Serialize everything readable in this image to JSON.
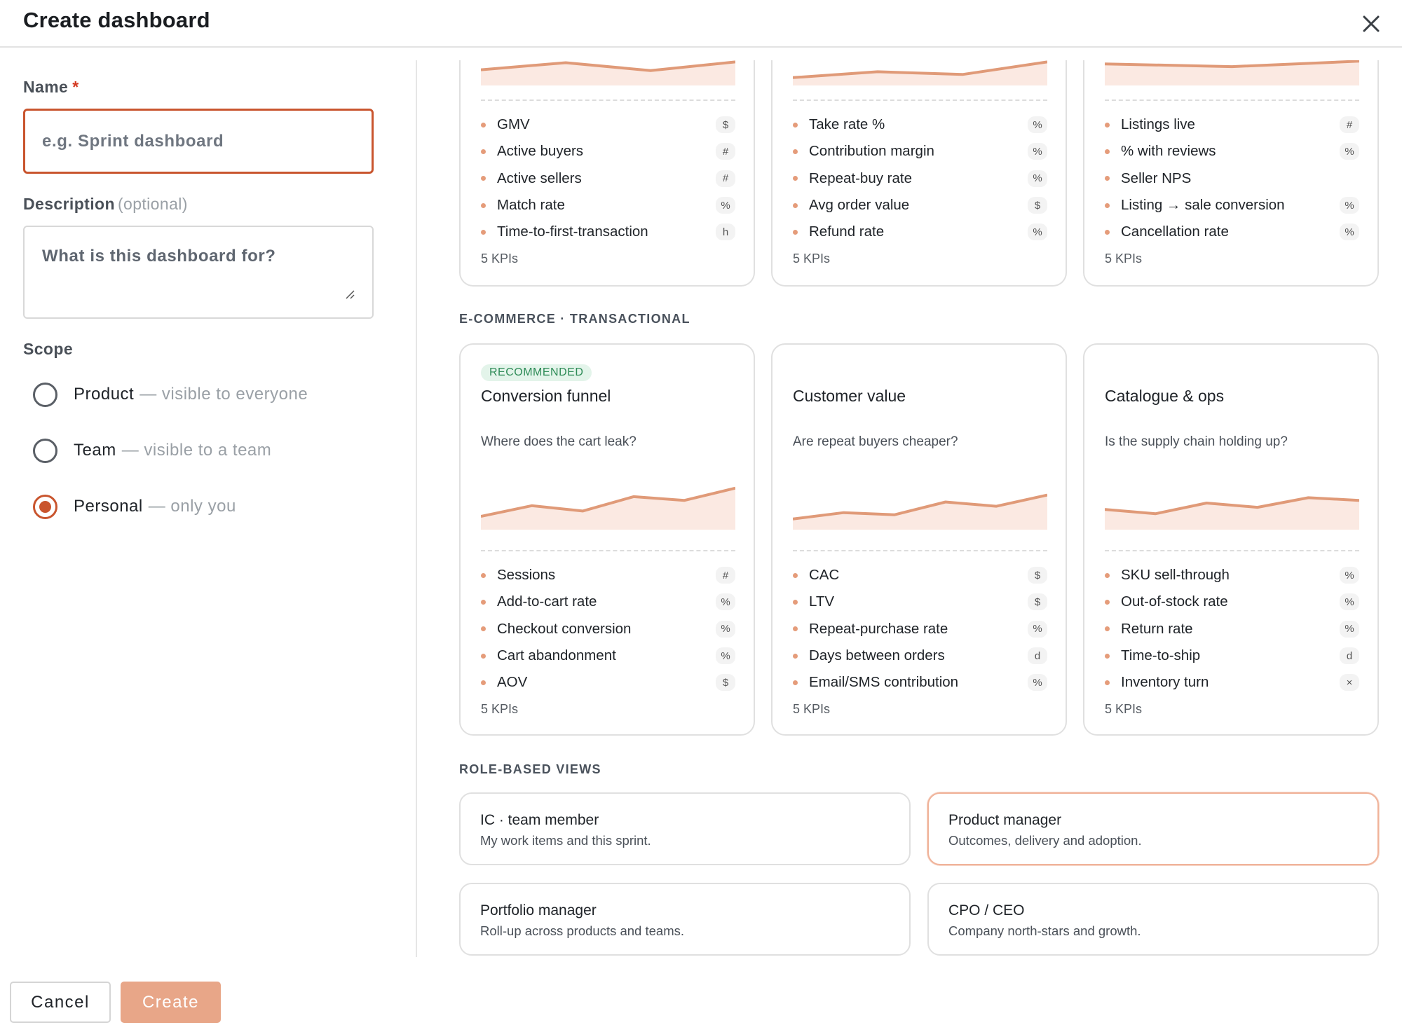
{
  "header": {
    "title": "Create dashboard"
  },
  "form": {
    "name_label": "Name",
    "name_required": "*",
    "name_placeholder": "e.g. Sprint dashboard",
    "description_label": "Description",
    "description_optional": "(optional)",
    "description_placeholder": "What is this dashboard for?",
    "scope_label": "Scope",
    "scope_options": [
      {
        "label": "Product",
        "hint": "— visible to everyone",
        "selected": false
      },
      {
        "label": "Team",
        "hint": "— visible to a team",
        "selected": false
      },
      {
        "label": "Personal",
        "hint": "— only you",
        "selected": true
      }
    ]
  },
  "footer": {
    "cancel_label": "Cancel",
    "create_label": "Create"
  },
  "colors": {
    "accent": "#c9552e",
    "spark_line": "#e09a78",
    "spark_fill": "#fbe9e2",
    "create_button": "#e8a688"
  },
  "top_cards": [
    {
      "spark": [
        40,
        58,
        38,
        60
      ],
      "kpis": [
        {
          "name": "GMV",
          "unit": "$"
        },
        {
          "name": "Active buyers",
          "unit": "#"
        },
        {
          "name": "Active sellers",
          "unit": "#"
        },
        {
          "name": "Match rate",
          "unit": "%"
        },
        {
          "name": "Time-to-first-transaction",
          "unit": "h"
        }
      ],
      "count": "5 KPIs"
    },
    {
      "spark": [
        20,
        35,
        28,
        60
      ],
      "kpis": [
        {
          "name": "Take rate %",
          "unit": "%"
        },
        {
          "name": "Contribution margin",
          "unit": "%"
        },
        {
          "name": "Repeat-buy rate",
          "unit": "%"
        },
        {
          "name": "Avg order value",
          "unit": "$"
        },
        {
          "name": "Refund rate",
          "unit": "%"
        }
      ],
      "count": "5 KPIs"
    },
    {
      "spark": [
        55,
        48,
        62
      ],
      "kpis": [
        {
          "name": "Listings live",
          "unit": "#"
        },
        {
          "name": "% with reviews",
          "unit": "%"
        },
        {
          "name": "Seller NPS",
          "unit": ""
        },
        {
          "name": "Listing → sale conversion",
          "unit": "%"
        },
        {
          "name": "Cancellation rate",
          "unit": "%"
        }
      ],
      "count": "5 KPIs"
    }
  ],
  "section_ecommerce": "E-COMMERCE · TRANSACTIONAL",
  "ecommerce_cards": [
    {
      "badge": "RECOMMENDED",
      "title": "Conversion funnel",
      "subtitle": "Where does the cart leak?",
      "spark": [
        25,
        45,
        35,
        62,
        55,
        78
      ],
      "kpis": [
        {
          "name": "Sessions",
          "unit": "#"
        },
        {
          "name": "Add-to-cart rate",
          "unit": "%"
        },
        {
          "name": "Checkout conversion",
          "unit": "%"
        },
        {
          "name": "Cart abandonment",
          "unit": "%"
        },
        {
          "name": "AOV",
          "unit": "$"
        }
      ],
      "count": "5 KPIs"
    },
    {
      "badge": "",
      "title": "Customer value",
      "subtitle": "Are repeat buyers cheaper?",
      "spark": [
        20,
        32,
        28,
        52,
        44,
        65
      ],
      "kpis": [
        {
          "name": "CAC",
          "unit": "$"
        },
        {
          "name": "LTV",
          "unit": "$"
        },
        {
          "name": "Repeat-purchase rate",
          "unit": "%"
        },
        {
          "name": "Days between orders",
          "unit": "d"
        },
        {
          "name": "Email/SMS contribution",
          "unit": "%"
        }
      ],
      "count": "5 KPIs"
    },
    {
      "badge": "",
      "title": "Catalogue & ops",
      "subtitle": "Is the supply chain holding up?",
      "spark": [
        38,
        30,
        50,
        42,
        60,
        55
      ],
      "kpis": [
        {
          "name": "SKU sell-through",
          "unit": "%"
        },
        {
          "name": "Out-of-stock rate",
          "unit": "%"
        },
        {
          "name": "Return rate",
          "unit": "%"
        },
        {
          "name": "Time-to-ship",
          "unit": "d"
        },
        {
          "name": "Inventory turn",
          "unit": "×"
        }
      ],
      "count": "5 KPIs"
    }
  ],
  "section_roles": "ROLE-BASED VIEWS",
  "roles": [
    {
      "title": "IC · team member",
      "subtitle": "My work items and this sprint.",
      "selected": false
    },
    {
      "title": "Product manager",
      "subtitle": "Outcomes, delivery and adoption.",
      "selected": true
    },
    {
      "title": "Portfolio manager",
      "subtitle": "Roll-up across products and teams.",
      "selected": false
    },
    {
      "title": "CPO / CEO",
      "subtitle": "Company north-stars and growth.",
      "selected": false
    }
  ]
}
